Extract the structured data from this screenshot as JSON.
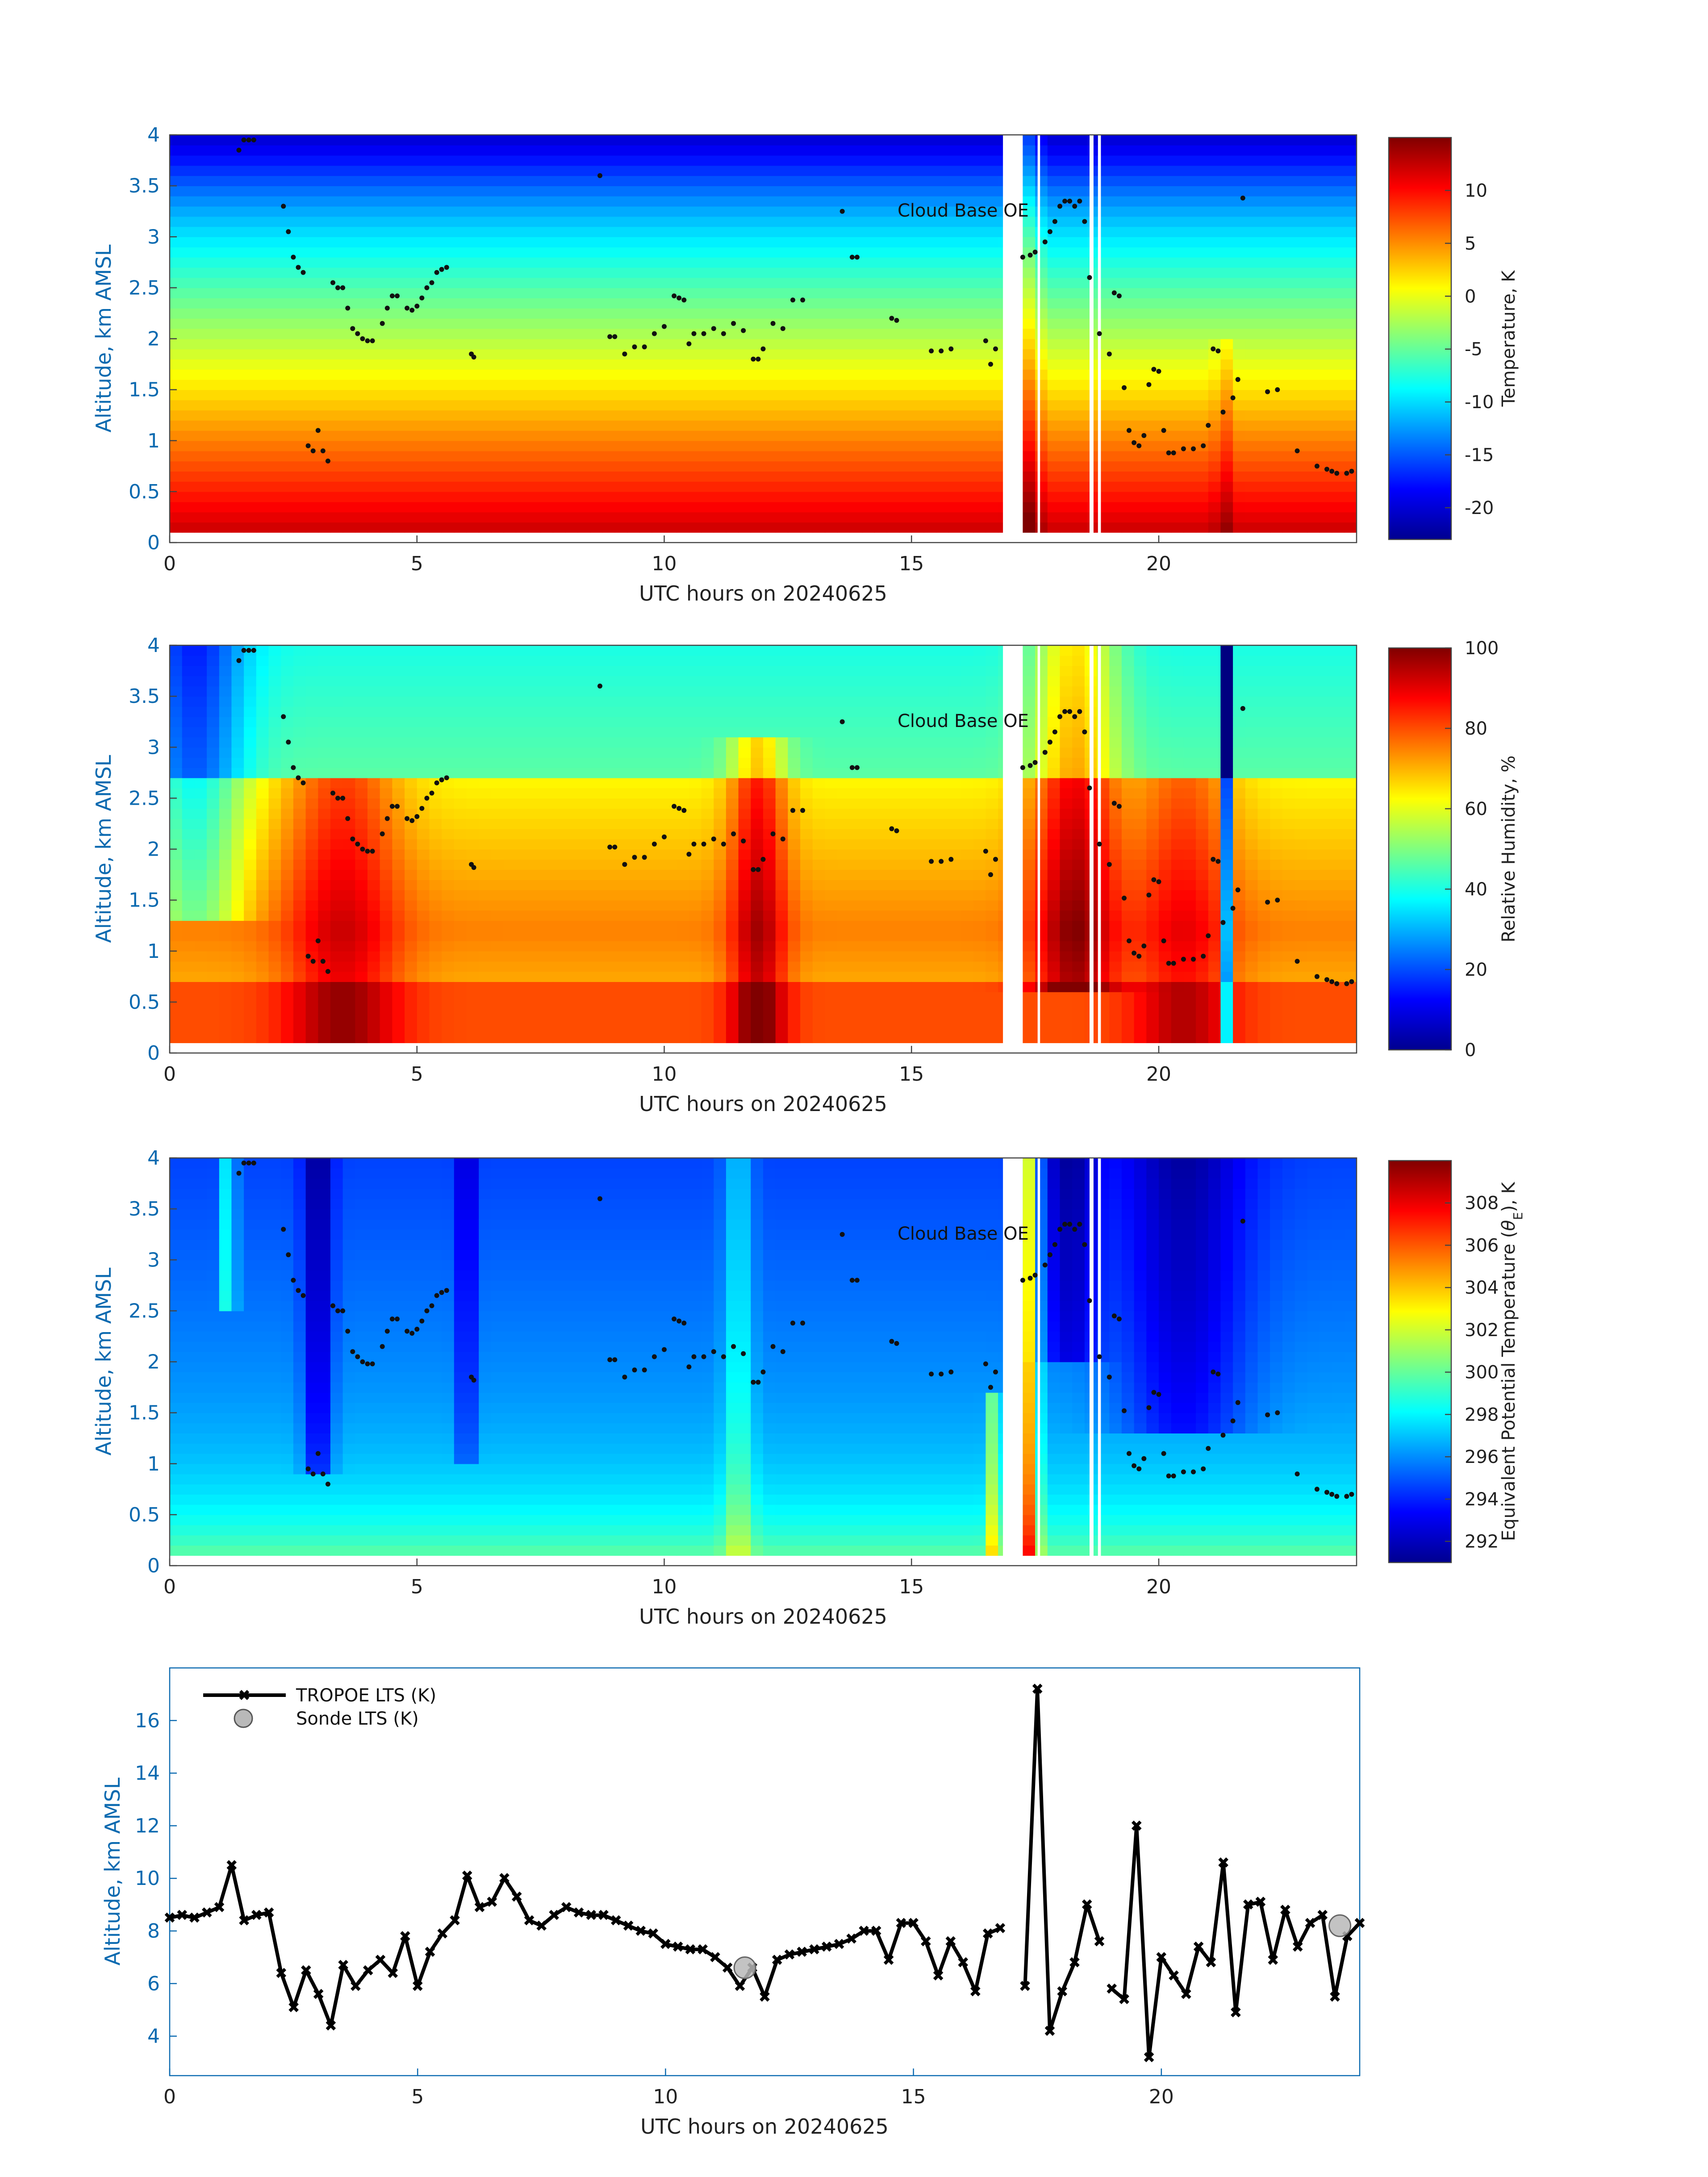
{
  "chart_data": [
    {
      "type": "heatmap",
      "title": "",
      "xlabel": "UTC hours on 20240625",
      "ylabel": "Altitude, km AMSL",
      "xlim": [
        0,
        24
      ],
      "ylim": [
        0,
        4
      ],
      "xticks": [
        "0",
        "5",
        "10",
        "15",
        "20"
      ],
      "yticks": [
        "0",
        "0.5",
        "1",
        "1.5",
        "2",
        "2.5",
        "3",
        "3.5",
        "4"
      ],
      "annotation": "Cloud Base OE",
      "colorbar": {
        "label": "Temperature, K",
        "range": [
          -23,
          15
        ],
        "ticks": [
          "10",
          "5",
          "0",
          "-5",
          "-10",
          "-15",
          "-20"
        ],
        "colormap": "jet"
      },
      "data_gaps_hours": [
        [
          16.85,
          17.25
        ],
        [
          17.55,
          17.6
        ],
        [
          18.6,
          18.68
        ],
        [
          18.77,
          18.83
        ]
      ]
    },
    {
      "type": "heatmap",
      "title": "",
      "xlabel": "UTC hours on 20240625",
      "ylabel": "Altitude, km AMSL",
      "xlim": [
        0,
        24
      ],
      "ylim": [
        0,
        4
      ],
      "xticks": [
        "0",
        "5",
        "10",
        "15",
        "20"
      ],
      "yticks": [
        "0",
        "0.5",
        "1",
        "1.5",
        "2",
        "2.5",
        "3",
        "3.5",
        "4"
      ],
      "annotation": "Cloud Base OE",
      "colorbar": {
        "label": "Relative Humidity, %",
        "range": [
          0,
          100
        ],
        "ticks": [
          "100",
          "80",
          "60",
          "40",
          "20",
          "0"
        ],
        "colormap": "jet"
      },
      "data_gaps_hours": [
        [
          16.85,
          17.25
        ],
        [
          17.55,
          17.6
        ],
        [
          18.6,
          18.68
        ],
        [
          18.77,
          18.83
        ]
      ]
    },
    {
      "type": "heatmap",
      "title": "",
      "xlabel": "UTC hours on 20240625",
      "ylabel": "Altitude, km AMSL",
      "xlim": [
        0,
        24
      ],
      "ylim": [
        0,
        4
      ],
      "xticks": [
        "0",
        "5",
        "10",
        "15",
        "20"
      ],
      "yticks": [
        "0",
        "0.5",
        "1",
        "1.5",
        "2",
        "2.5",
        "3",
        "3.5",
        "4"
      ],
      "annotation": "Cloud Base OE",
      "colorbar": {
        "label_main": "Equivalent Potential Temperature (",
        "label_theta": "θ",
        "label_sub": "E",
        "label_tail": "), K",
        "range": [
          291,
          310
        ],
        "ticks": [
          "308",
          "306",
          "304",
          "302",
          "300",
          "298",
          "296",
          "294",
          "292"
        ],
        "colormap": "jet"
      },
      "data_gaps_hours": [
        [
          16.85,
          17.25
        ],
        [
          17.55,
          17.6
        ],
        [
          18.6,
          18.68
        ],
        [
          18.77,
          18.83
        ]
      ]
    },
    {
      "type": "line",
      "title": "",
      "xlabel": "UTC hours on 20240625",
      "ylabel": "Altitude, km AMSL",
      "xlim": [
        0,
        24
      ],
      "ylim": [
        2.5,
        18
      ],
      "xticks": [
        "0",
        "5",
        "10",
        "15",
        "20"
      ],
      "yticks": [
        "4",
        "6",
        "8",
        "10",
        "12",
        "14",
        "16"
      ],
      "legend": {
        "position": "top-left",
        "entries": [
          "TROPOE LTS (K)",
          "Sonde LTS (K)"
        ]
      },
      "series": [
        {
          "name": "TROPOE LTS (K)",
          "x": [
            0,
            0.25,
            0.5,
            0.75,
            1.0,
            1.25,
            1.5,
            1.75,
            2.0,
            2.25,
            2.5,
            2.75,
            3.0,
            3.25,
            3.5,
            3.75,
            4.0,
            4.25,
            4.5,
            4.75,
            5.0,
            5.25,
            5.5,
            5.75,
            6.0,
            6.25,
            6.5,
            6.75,
            7.0,
            7.25,
            7.5,
            7.75,
            8.0,
            8.25,
            8.5,
            8.75,
            9.0,
            9.25,
            9.5,
            9.75,
            10.0,
            10.25,
            10.5,
            10.75,
            11.0,
            11.25,
            11.5,
            11.75,
            12.0,
            12.25,
            12.5,
            12.75,
            13.0,
            13.25,
            13.5,
            13.75,
            14.0,
            14.25,
            14.5,
            14.75,
            15.0,
            15.25,
            15.5,
            15.75,
            16.0,
            16.25,
            16.5,
            16.75,
            null,
            17.25,
            17.5,
            17.75,
            18.0,
            18.25,
            18.5,
            18.75,
            null,
            19.0,
            19.25,
            19.5,
            19.75,
            20.0,
            20.25,
            20.5,
            20.75,
            21.0,
            21.25,
            21.5,
            21.75,
            22.0,
            22.25,
            22.5,
            22.75,
            23.0,
            23.25,
            23.5,
            23.75,
            24.0
          ],
          "values": [
            8.5,
            8.6,
            8.5,
            8.7,
            8.9,
            10.5,
            8.4,
            8.6,
            8.7,
            6.4,
            5.1,
            6.5,
            5.6,
            4.4,
            6.7,
            5.9,
            6.5,
            6.9,
            6.4,
            7.8,
            5.9,
            7.2,
            7.9,
            8.4,
            10.1,
            8.9,
            9.1,
            10.0,
            9.3,
            8.4,
            8.2,
            8.6,
            8.9,
            8.7,
            8.6,
            8.6,
            8.4,
            8.2,
            8.0,
            7.9,
            7.5,
            7.4,
            7.3,
            7.3,
            7.0,
            6.6,
            5.9,
            6.6,
            5.5,
            6.9,
            7.1,
            7.2,
            7.3,
            7.4,
            7.5,
            7.7,
            8.0,
            8.0,
            6.9,
            8.3,
            8.3,
            7.6,
            6.3,
            7.6,
            6.8,
            5.7,
            7.9,
            8.1,
            null,
            5.9,
            17.2,
            4.2,
            5.7,
            6.8,
            9.0,
            7.6,
            null,
            5.8,
            5.4,
            12.0,
            3.2,
            7.0,
            6.3,
            5.6,
            7.4,
            6.8,
            10.6,
            4.9,
            9.0,
            9.1,
            6.9,
            8.8,
            7.4,
            8.3,
            8.6,
            5.5,
            7.8,
            8.3
          ]
        },
        {
          "name": "Sonde LTS (K)",
          "x": [
            11.6,
            23.6
          ],
          "values": [
            6.6,
            8.2
          ]
        }
      ]
    }
  ]
}
